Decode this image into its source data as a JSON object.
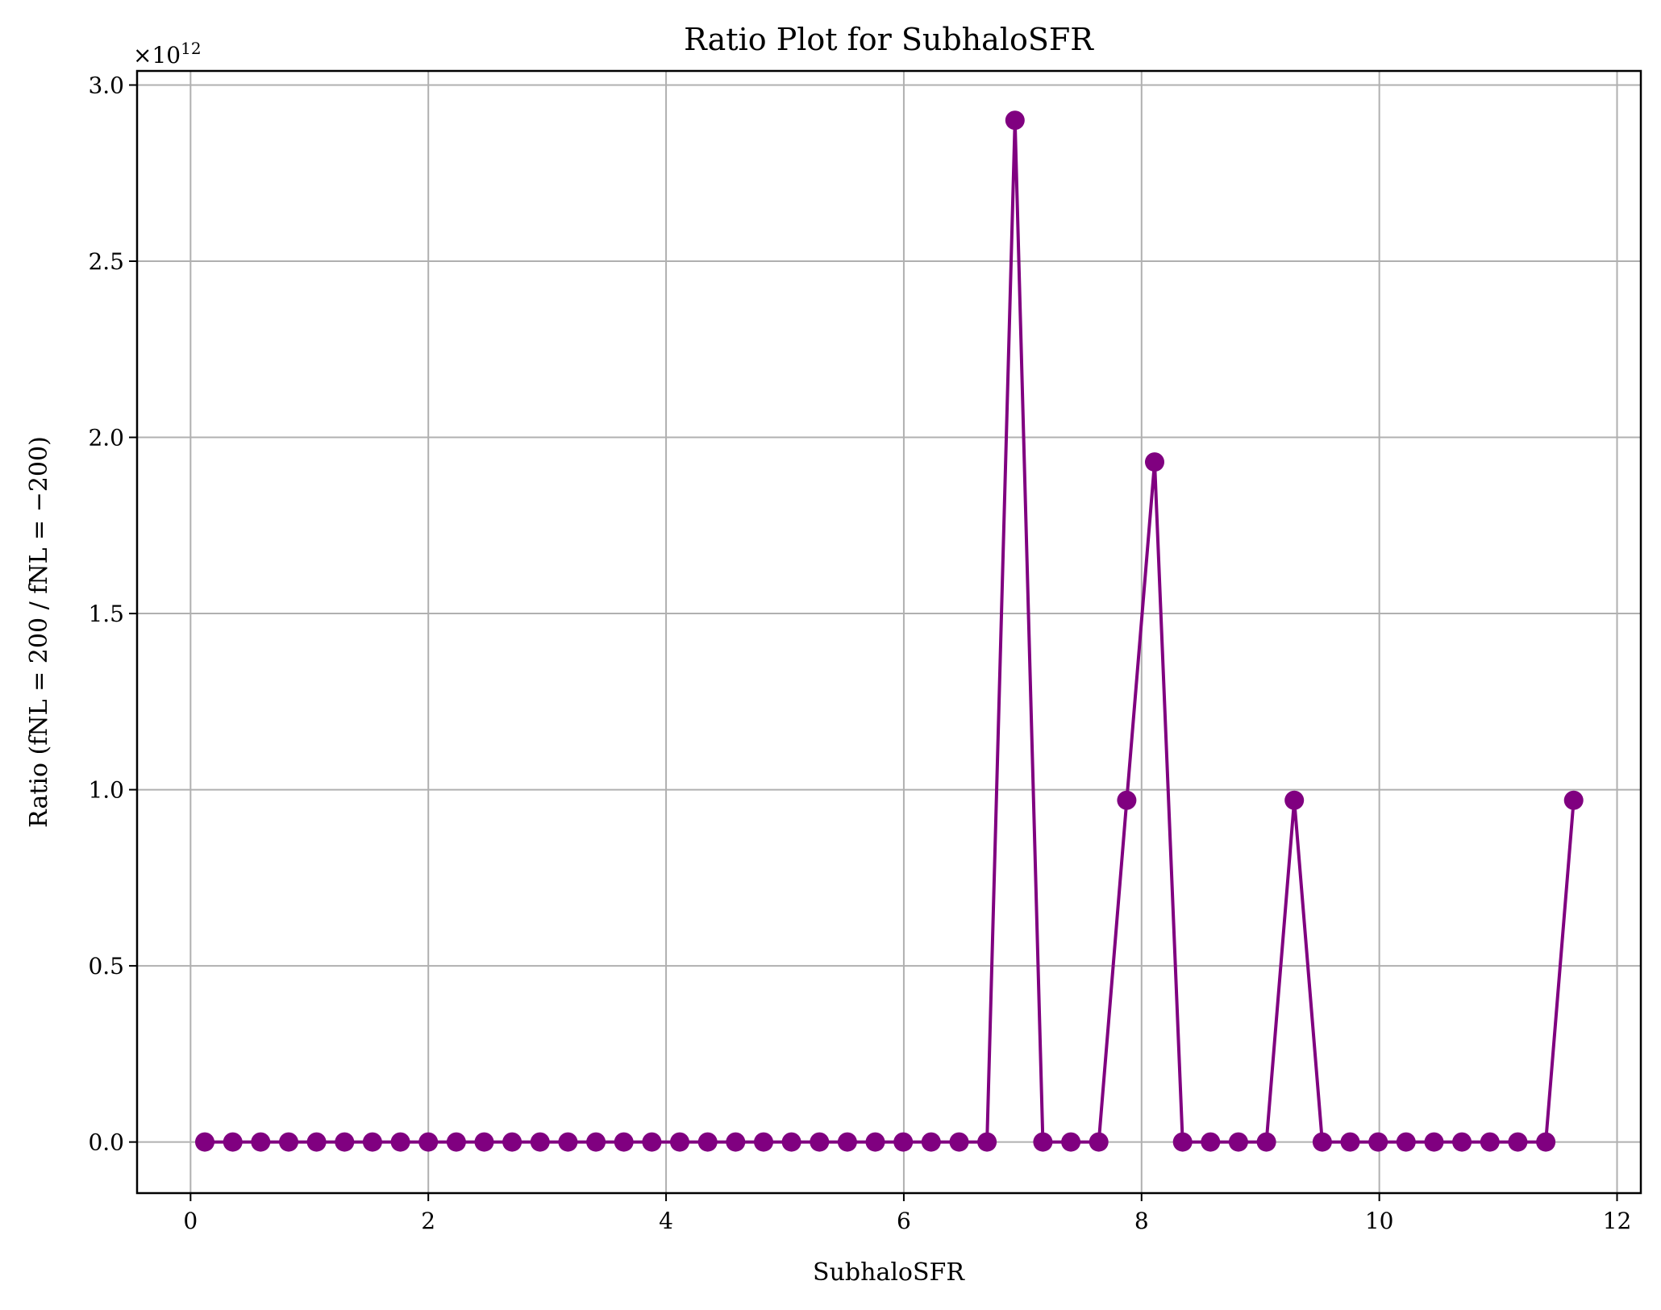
{
  "chart_data": {
    "type": "line",
    "title": "Ratio Plot for SubhaloSFR",
    "xlabel": "SubhaloSFR",
    "ylabel": "Ratio (fNL = 200 / fNL = −200)",
    "y_multiplier": "×10",
    "y_multiplier_exp": "12",
    "xlim": [
      -0.45,
      12.2
    ],
    "ylim": [
      -0.145,
      3.04
    ],
    "y_scale": 1000000000000.0,
    "x_ticks": [
      0,
      2,
      4,
      6,
      8,
      10,
      12
    ],
    "x_tick_labels": [
      "0",
      "2",
      "4",
      "6",
      "8",
      "10",
      "12"
    ],
    "y_ticks": [
      0.0,
      0.5,
      1.0,
      1.5,
      2.0,
      2.5,
      3.0
    ],
    "y_tick_labels": [
      "0.0",
      "0.5",
      "1.0",
      "1.5",
      "2.0",
      "2.5",
      "3.0"
    ],
    "grid": true,
    "color": "#800080",
    "x": [
      0.12,
      0.355,
      0.59,
      0.825,
      1.06,
      1.295,
      1.53,
      1.765,
      2.0,
      2.235,
      2.47,
      2.705,
      2.94,
      3.175,
      3.41,
      3.645,
      3.88,
      4.115,
      4.35,
      4.585,
      4.82,
      5.055,
      5.29,
      5.525,
      5.76,
      5.995,
      6.23,
      6.465,
      6.7,
      6.935,
      7.17,
      7.405,
      7.64,
      7.875,
      8.11,
      8.345,
      8.58,
      8.815,
      9.05,
      9.285,
      9.52,
      9.755,
      9.99,
      10.225,
      10.46,
      10.695,
      10.93,
      11.165,
      11.4,
      11.635
    ],
    "values": [
      0,
      0,
      0,
      0,
      0,
      0,
      0,
      0,
      0,
      0,
      0,
      0,
      0,
      0,
      0,
      0,
      0,
      0,
      0,
      0,
      0,
      0,
      0,
      0,
      0,
      0,
      0,
      0,
      0,
      2.9,
      0,
      0,
      0,
      0.97,
      1.93,
      0,
      0,
      0,
      0,
      0.97,
      0,
      0,
      0,
      0,
      0,
      0,
      0,
      0,
      0,
      0.97
    ]
  }
}
